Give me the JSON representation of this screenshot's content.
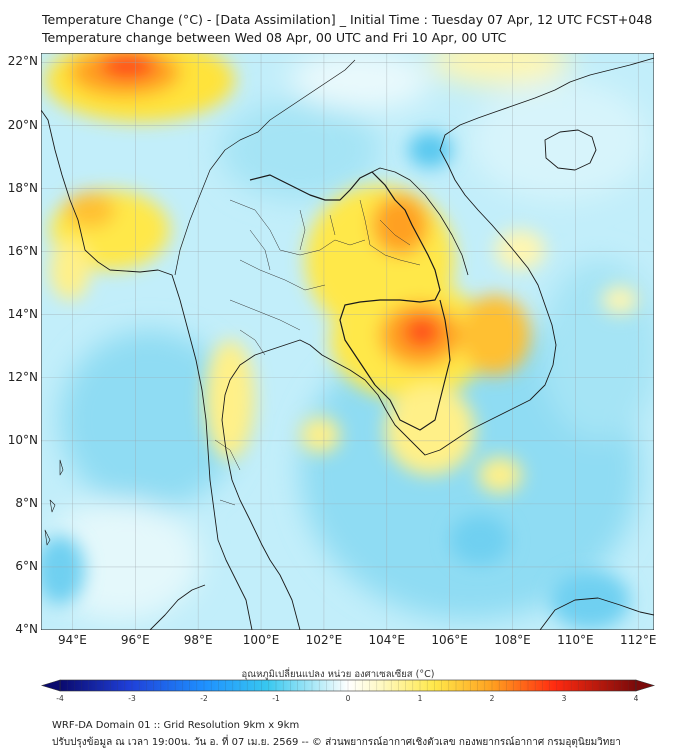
{
  "header": {
    "line1": "Temperature Change (°C) - [Data Assimilation] _ Initial Time : Tuesday 07 Apr, 12 UTC FCST+048",
    "line2": "Temperature change between Wed 08 Apr, 00 UTC and Fri 10 Apr, 00 UTC"
  },
  "map": {
    "lat_ticks": [
      "22°N",
      "20°N",
      "18°N",
      "16°N",
      "14°N",
      "12°N",
      "10°N",
      "8°N",
      "6°N",
      "4°N"
    ],
    "lon_ticks": [
      "94°E",
      "96°E",
      "98°E",
      "100°E",
      "102°E",
      "104°E",
      "106°E",
      "108°E",
      "110°E",
      "112°E"
    ],
    "lon_range": [
      93,
      112.5
    ],
    "lat_range": [
      4,
      22.3
    ],
    "grid": true
  },
  "colorbar": {
    "title": "อุณหภูมิเปลี่ยนแปลง หน่วย องศาเซลเซียส (°C)",
    "ticks": [
      "-4",
      "-3",
      "-2",
      "-1",
      "0",
      "1",
      "2",
      "3",
      "4"
    ],
    "range": [
      -4,
      4
    ]
  },
  "footer": {
    "line1": "WRF-DA Domain 01 :: Grid Resolution 9km x 9km",
    "line2": "ปรับปรุงข้อมูล ณ เวลา 19:00น. วัน อ. ที่ 07 เม.ย. 2569 -- © ส่วนพยากรณ์อากาศเชิงตัวเลข กองพยากรณ์อากาศ กรมอุตุนิยมวิทยา"
  }
}
